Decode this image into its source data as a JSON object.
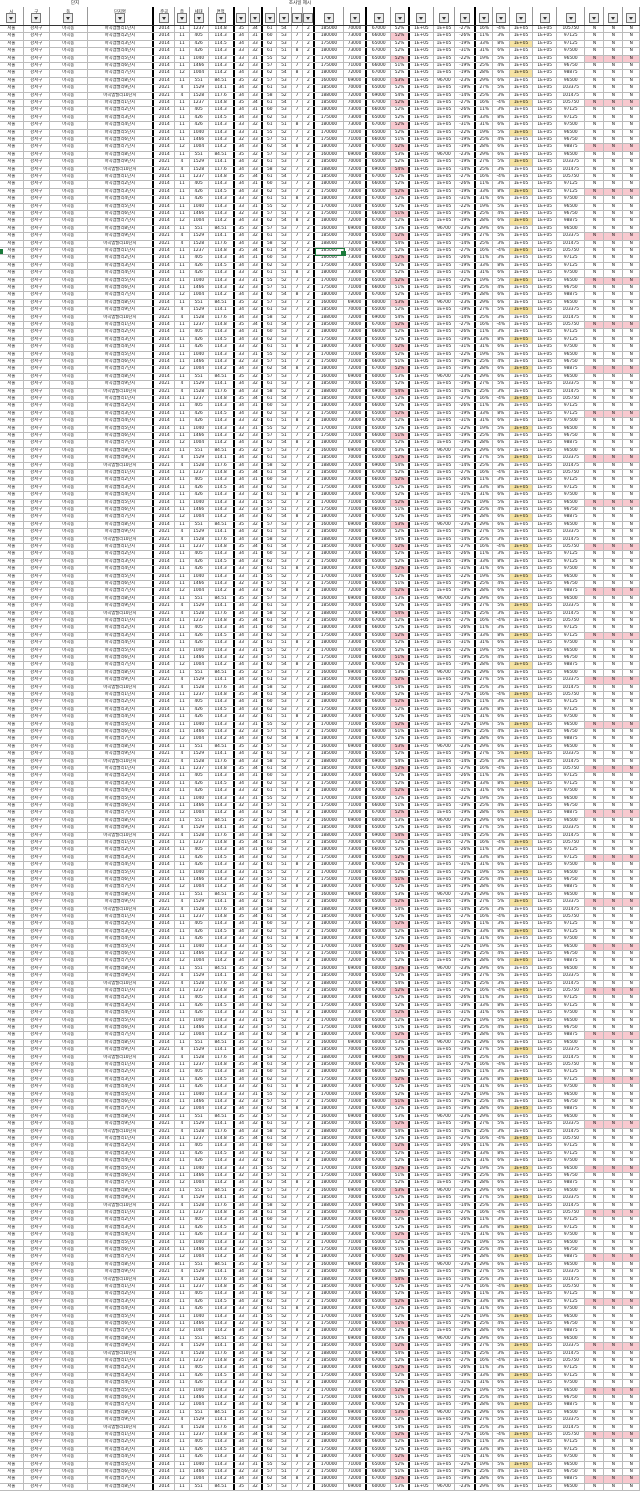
{
  "header_top": {
    "left_label": "단지",
    "right_label": "조사일 제시"
  },
  "columns": [
    "시",
    "구",
    "동",
    "단지명",
    "준공",
    "층",
    "세대",
    "면적",
    "",
    "",
    "",
    "",
    "",
    "",
    "",
    "",
    "",
    "",
    "",
    "",
    "",
    "",
    "",
    "",
    "",
    "",
    "",
    "",
    "",
    "",
    "",
    "",
    "",
    "",
    "",
    "",
    "",
    "",
    "거래",
    "거래",
    "거래"
  ],
  "rows": [
    [
      "서울",
      "강서구",
      "마곡동",
      "마곡엠밸리1단지",
      "2014",
      "11",
      "1237",
      "114.8",
      "35",
      "34",
      "61",
      "54",
      "7",
      "2",
      "185000",
      "70000",
      "67000",
      "52%",
      "1E+05",
      "1E+05",
      "-27%",
      "16%",
      "-4%",
      "1E+05",
      "1E+05",
      "105750",
      "N",
      "N",
      "N"
    ],
    [
      "서울",
      "강서구",
      "마곡동",
      "마곡엠밸리2단지",
      "2014",
      "11",
      "405",
      "114.3",
      "34",
      "31",
      "60",
      "53",
      "7",
      "2",
      "180000",
      "73000",
      "66000",
      "52%",
      "1E+05",
      "1E+05",
      "-26%",
      "11%",
      "3%",
      "1E+05",
      "1E+05",
      "97125",
      "N",
      "N",
      "N"
    ],
    [
      "서울",
      "강서구",
      "마곡동",
      "마곡엠밸리3단지",
      "2014",
      "11",
      "426",
      "114.5",
      "34",
      "33",
      "62",
      "53",
      "7",
      "2",
      "175000",
      "73000",
      "65000",
      "52%",
      "1E+05",
      "1E+05",
      "-19%",
      "33%",
      "8%",
      "1E+05",
      "1E+05",
      "97125",
      "N",
      "N",
      "N"
    ],
    [
      "서울",
      "강서구",
      "마곡동",
      "마곡엠밸리4단지",
      "2014",
      "11",
      "426",
      "114.3",
      "33",
      "32",
      "61",
      "51",
      "8",
      "2",
      "180000",
      "73000",
      "67000",
      "52%",
      "1E+05",
      "1E+05",
      "-31%",
      "31%",
      "6%",
      "1E+05",
      "1E+05",
      "97500",
      "N",
      "N",
      "N"
    ],
    [
      "서울",
      "강서구",
      "마곡동",
      "마곡엠밸리5단지",
      "2014",
      "11",
      "1040",
      "114.3",
      "33",
      "31",
      "55",
      "52",
      "7",
      "2",
      "170000",
      "71000",
      "65000",
      "52%",
      "1E+05",
      "1E+05",
      "-22%",
      "19%",
      "5%",
      "1E+05",
      "1E+05",
      "96500",
      "N",
      "N",
      "N"
    ],
    [
      "서울",
      "강서구",
      "마곡동",
      "마곡엠밸리6단지",
      "2014",
      "11",
      "1466",
      "114.3",
      "32",
      "33",
      "57",
      "51",
      "7",
      "2",
      "175000",
      "71000",
      "66000",
      "51%",
      "1E+05",
      "1E+05",
      "-19%",
      "25%",
      "4%",
      "1E+05",
      "1E+05",
      "96750",
      "N",
      "N",
      "N"
    ],
    [
      "서울",
      "강서구",
      "마곡동",
      "마곡엠밸리7단지",
      "2014",
      "12",
      "1004",
      "114.2",
      "34",
      "33",
      "62",
      "54",
      "8",
      "2",
      "180000",
      "72000",
      "67000",
      "52%",
      "1E+05",
      "1E+05",
      "-19%",
      "28%",
      "6%",
      "1E+05",
      "1E+05",
      "98875",
      "N",
      "N",
      "N"
    ],
    [
      "서울",
      "강서구",
      "마곡동",
      "마곡엠밸리8단지",
      "2014",
      "11",
      "551",
      "84.51",
      "35",
      "32",
      "57",
      "53",
      "7",
      "2",
      "160000",
      "69000",
      "60000",
      "53%",
      "1E+05",
      "96700",
      "-23%",
      "29%",
      "6%",
      "1E+05",
      "1E+05",
      "96500",
      "N",
      "N",
      "N"
    ],
    [
      "서울",
      "강서구",
      "마곡동",
      "마곡엠밸리9단지",
      "2021",
      "4",
      "1529",
      "114.1",
      "34",
      "32",
      "61",
      "53",
      "7",
      "2",
      "185000",
      "70000",
      "65000",
      "52%",
      "1E+05",
      "1E+05",
      "-19%",
      "27%",
      "5%",
      "1E+05",
      "1E+05",
      "103375",
      "N",
      "N",
      "N"
    ],
    [
      "서울",
      "강서구",
      "마곡동",
      "마곡엠밸리10단지",
      "2021",
      "4",
      "1528",
      "117.6",
      "34",
      "33",
      "58",
      "52",
      "7",
      "2",
      "188000",
      "72000",
      "69000",
      "54%",
      "1E+05",
      "1E+05",
      "-14%",
      "25%",
      "3%",
      "1E+05",
      "1E+05",
      "101475",
      "N",
      "N",
      "N"
    ]
  ],
  "row_count": 205,
  "colors": {
    "pink": "#f8c9cf",
    "yellow": "#f6e3a3",
    "selection": "#1a7a3a"
  }
}
